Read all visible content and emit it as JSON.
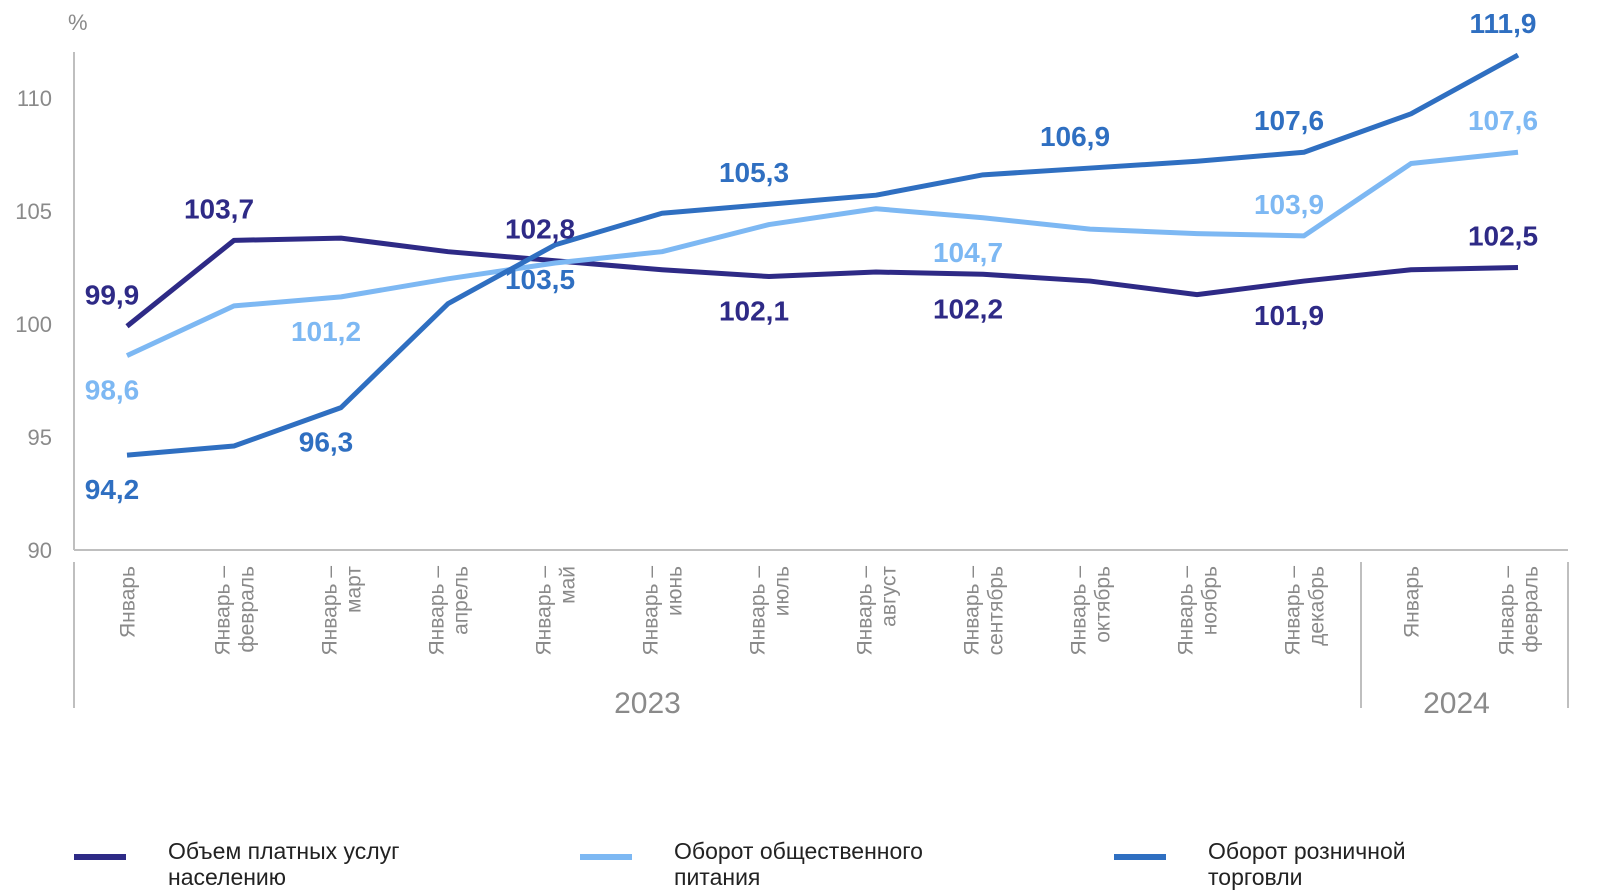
{
  "chart_data": {
    "type": "line",
    "unit_label": "%",
    "ylim": [
      90,
      112
    ],
    "yticks": [
      "90",
      "95",
      "100",
      "105",
      "110"
    ],
    "categories": [
      [
        "Январь"
      ],
      [
        "Январь –",
        "февраль"
      ],
      [
        "Январь –",
        "март"
      ],
      [
        "Январь –",
        "апрель"
      ],
      [
        "Январь –",
        "май"
      ],
      [
        "Январь –",
        "июнь"
      ],
      [
        "Январь –",
        "июль"
      ],
      [
        "Январь –",
        "август"
      ],
      [
        "Январь –",
        "сентябрь"
      ],
      [
        "Январь –",
        "октябрь"
      ],
      [
        "Январь –",
        "ноябрь"
      ],
      [
        "Январь –",
        "декабрь"
      ],
      [
        "Январь"
      ],
      [
        "Январь –",
        "февраль"
      ]
    ],
    "year_groups": [
      {
        "label": "2023",
        "start": 0,
        "end": 11
      },
      {
        "label": "2024",
        "start": 12,
        "end": 13
      }
    ],
    "series": [
      {
        "name": "Объем платных услуг населению",
        "color": "#2e2a86",
        "values": [
          99.9,
          103.7,
          103.8,
          103.2,
          102.8,
          102.4,
          102.1,
          102.3,
          102.2,
          101.9,
          101.3,
          101.9,
          102.4,
          102.5
        ],
        "labels": [
          {
            "index": 0,
            "text": "99,9",
            "pos": "above"
          },
          {
            "index": 1,
            "text": "103,7",
            "pos": "above"
          },
          {
            "index": 4,
            "text": "102,8",
            "pos": "above"
          },
          {
            "index": 6,
            "text": "102,1",
            "pos": "below"
          },
          {
            "index": 8,
            "text": "102,2",
            "pos": "below"
          },
          {
            "index": 11,
            "text": "101,9",
            "pos": "below"
          },
          {
            "index": 13,
            "text": "102,5",
            "pos": "above"
          }
        ]
      },
      {
        "name": "Оборот общественного питания",
        "color": "#7db8f3",
        "values": [
          98.6,
          100.8,
          101.2,
          102.0,
          102.7,
          103.2,
          104.4,
          105.1,
          104.7,
          104.2,
          104.0,
          103.9,
          107.1,
          107.6
        ],
        "labels": [
          {
            "index": 0,
            "text": "98,6",
            "pos": "below"
          },
          {
            "index": 2,
            "text": "101,2",
            "pos": "below"
          },
          {
            "index": 8,
            "text": "104,7",
            "pos": "below"
          },
          {
            "index": 11,
            "text": "103,9",
            "pos": "above"
          },
          {
            "index": 13,
            "text": "107,6",
            "pos": "above"
          }
        ]
      },
      {
        "name": "Оборот розничной торговли",
        "color": "#2f6fc1",
        "values": [
          94.2,
          94.6,
          96.3,
          100.9,
          103.5,
          104.9,
          105.3,
          105.7,
          106.6,
          106.9,
          107.2,
          107.6,
          109.3,
          111.9
        ],
        "labels": [
          {
            "index": 0,
            "text": "94,2",
            "pos": "below"
          },
          {
            "index": 2,
            "text": "96,3",
            "pos": "below"
          },
          {
            "index": 4,
            "text": "103,5",
            "pos": "below"
          },
          {
            "index": 6,
            "text": "105,3",
            "pos": "above"
          },
          {
            "index": 9,
            "text": "106,9",
            "pos": "above"
          },
          {
            "index": 11,
            "text": "107,6",
            "pos": "above"
          },
          {
            "index": 13,
            "text": "111,9",
            "pos": "above"
          }
        ]
      }
    ],
    "grid": false,
    "legend_position": "bottom"
  },
  "legend": [
    {
      "line1": "Объем платных услуг",
      "line2": "населению",
      "color": "#2e2a86"
    },
    {
      "line1": "Оборот общественного",
      "line2": "питания",
      "color": "#7db8f3"
    },
    {
      "line1": "Оборот розничной",
      "line2": "торговли",
      "color": "#2f6fc1"
    }
  ]
}
